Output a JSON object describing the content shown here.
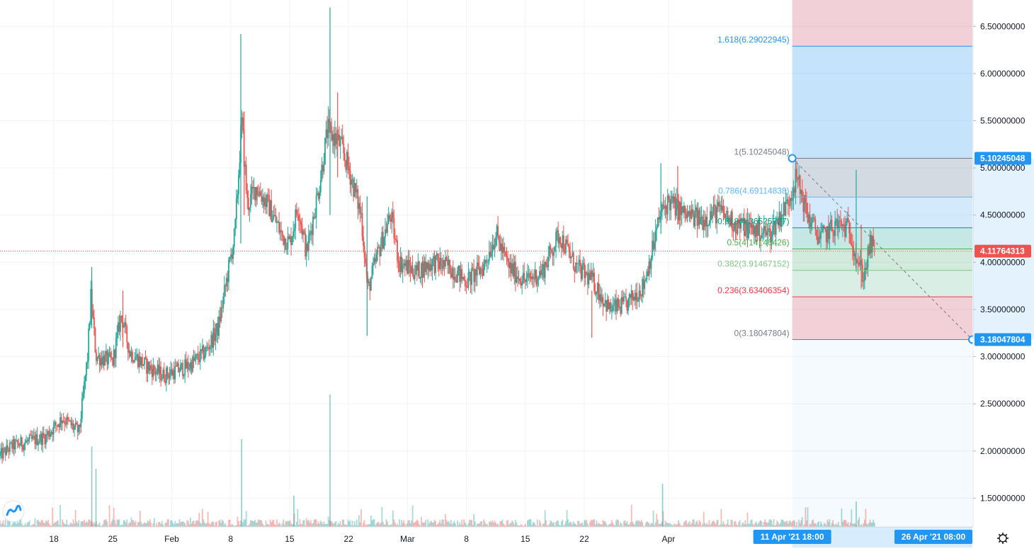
{
  "chart_data": {
    "type": "candlestick",
    "y_axis": {
      "position": "right",
      "range": [
        1.18,
        6.75
      ],
      "ticks": [
        1.5,
        2.0,
        2.5,
        3.0,
        3.5,
        4.0,
        4.5,
        5.0,
        5.5,
        6.0,
        6.5
      ],
      "tick_labels": [
        "1.50000000",
        "2.00000000",
        "2.50000000",
        "3.00000000",
        "3.50000000",
        "4.00000000",
        "4.50000000",
        "5.00000000",
        "5.50000000",
        "6.00000000",
        "6.50000000"
      ]
    },
    "x_axis": {
      "tick_labels": [
        "18",
        "25",
        "Feb",
        "8",
        "15",
        "22",
        "Mar",
        "8",
        "15",
        "22",
        "Apr"
      ],
      "tick_days": [
        18,
        25,
        32,
        39,
        46,
        53,
        60,
        67,
        74,
        81,
        91
      ],
      "range_days": [
        11.6,
        127.1
      ],
      "range_labels": [
        "11 Apr '21  18:00",
        "26 Apr '21  08:00"
      ]
    },
    "current_price": {
      "value": 4.11764313,
      "label": "4.11764313",
      "color": "#ef5350"
    },
    "price_series": [
      {
        "day": 11.6,
        "value": 1.95
      },
      {
        "day": 13,
        "value": 2.05
      },
      {
        "day": 15,
        "value": 2.1
      },
      {
        "day": 17,
        "value": 2.15
      },
      {
        "day": 19,
        "value": 2.35
      },
      {
        "day": 21,
        "value": 2.2
      },
      {
        "day": 22,
        "value": 3.0
      },
      {
        "day": 22.4,
        "value": 3.65
      },
      {
        "day": 23,
        "value": 3.0
      },
      {
        "day": 25,
        "value": 2.95
      },
      {
        "day": 26,
        "value": 3.45
      },
      {
        "day": 27,
        "value": 3.05
      },
      {
        "day": 29,
        "value": 2.9
      },
      {
        "day": 31,
        "value": 2.8
      },
      {
        "day": 34,
        "value": 2.9
      },
      {
        "day": 36,
        "value": 3.05
      },
      {
        "day": 37.5,
        "value": 3.3
      },
      {
        "day": 38.5,
        "value": 3.8
      },
      {
        "day": 39.5,
        "value": 4.3
      },
      {
        "day": 40.3,
        "value": 5.5
      },
      {
        "day": 41,
        "value": 4.6
      },
      {
        "day": 42,
        "value": 4.8
      },
      {
        "day": 43.5,
        "value": 4.6
      },
      {
        "day": 45,
        "value": 4.3
      },
      {
        "day": 46,
        "value": 4.2
      },
      {
        "day": 47,
        "value": 4.6
      },
      {
        "day": 48,
        "value": 4.1
      },
      {
        "day": 49.5,
        "value": 4.8
      },
      {
        "day": 50.5,
        "value": 5.4
      },
      {
        "day": 52,
        "value": 5.25
      },
      {
        "day": 53,
        "value": 5.0
      },
      {
        "day": 54.5,
        "value": 4.5
      },
      {
        "day": 55.3,
        "value": 3.7
      },
      {
        "day": 56.5,
        "value": 4.1
      },
      {
        "day": 58,
        "value": 4.5
      },
      {
        "day": 59,
        "value": 4.0
      },
      {
        "day": 61,
        "value": 3.9
      },
      {
        "day": 63,
        "value": 4.0
      },
      {
        "day": 65,
        "value": 3.95
      },
      {
        "day": 67,
        "value": 3.8
      },
      {
        "day": 69,
        "value": 3.95
      },
      {
        "day": 70.5,
        "value": 4.3
      },
      {
        "day": 72,
        "value": 3.95
      },
      {
        "day": 74,
        "value": 3.8
      },
      {
        "day": 76,
        "value": 3.9
      },
      {
        "day": 78,
        "value": 4.3
      },
      {
        "day": 80,
        "value": 3.95
      },
      {
        "day": 82,
        "value": 3.8
      },
      {
        "day": 84,
        "value": 3.5
      },
      {
        "day": 86,
        "value": 3.55
      },
      {
        "day": 88,
        "value": 3.75
      },
      {
        "day": 89,
        "value": 4.1
      },
      {
        "day": 90,
        "value": 4.5
      },
      {
        "day": 91,
        "value": 4.65
      },
      {
        "day": 93,
        "value": 4.5
      },
      {
        "day": 95,
        "value": 4.45
      },
      {
        "day": 97,
        "value": 4.55
      },
      {
        "day": 99,
        "value": 4.4
      },
      {
        "day": 101,
        "value": 4.35
      },
      {
        "day": 103,
        "value": 4.3
      },
      {
        "day": 105,
        "value": 4.6
      },
      {
        "day": 106.2,
        "value": 4.9
      },
      {
        "day": 107.5,
        "value": 4.5
      },
      {
        "day": 109,
        "value": 4.25
      },
      {
        "day": 111,
        "value": 4.4
      },
      {
        "day": 112.5,
        "value": 4.35
      },
      {
        "day": 113.5,
        "value": 4.0
      },
      {
        "day": 114.2,
        "value": 3.85
      },
      {
        "day": 115,
        "value": 4.2
      },
      {
        "day": 115.5,
        "value": 4.12
      }
    ],
    "spikes": [
      {
        "day": 22.5,
        "high": 3.95,
        "low": 3.3
      },
      {
        "day": 26.2,
        "high": 3.7,
        "low": 3.1
      },
      {
        "day": 40.2,
        "high": 6.42,
        "low": 4.2
      },
      {
        "day": 40.6,
        "high": 5.6,
        "low": 4.5
      },
      {
        "day": 50.8,
        "high": 6.7,
        "low": 4.5
      },
      {
        "day": 51.7,
        "high": 5.8,
        "low": 4.9
      },
      {
        "day": 55.2,
        "high": 4.7,
        "low": 3.22
      },
      {
        "day": 81.9,
        "high": 3.7,
        "low": 3.2
      },
      {
        "day": 90.1,
        "high": 5.05,
        "low": 4.3
      },
      {
        "day": 92.1,
        "high": 5.02,
        "low": 4.4
      },
      {
        "day": 113.3,
        "high": 4.98,
        "low": 3.9
      },
      {
        "day": 113.9,
        "high": 4.4,
        "low": 3.72
      }
    ],
    "volume_spikes": [
      {
        "day": 22.5,
        "value": 0.55
      },
      {
        "day": 23,
        "value": 0.4
      },
      {
        "day": 40.3,
        "value": 0.6
      },
      {
        "day": 46.5,
        "value": 0.22
      },
      {
        "day": 50.8,
        "value": 0.9
      },
      {
        "day": 90.3,
        "value": 0.3
      },
      {
        "day": 113.3,
        "value": 0.18
      }
    ],
    "fib_levels": [
      {
        "ratio": 1.618,
        "value": 6.29022945,
        "label": "1.618(6.29022945)",
        "color": "#2196f3"
      },
      {
        "ratio": 1,
        "value": 5.10245048,
        "label": "1(5.10245048)",
        "color": "#787b86"
      },
      {
        "ratio": 0.786,
        "value": 4.69114838,
        "label": "0.786(4.69114838)",
        "color": "#64b5f6"
      },
      {
        "ratio": 0.618,
        "value": 4.36525727,
        "label": "0.618(4.36525727)",
        "color": "#089981"
      },
      {
        "ratio": 0.5,
        "value": 4.14146426,
        "label": "0.5(4.14146426)",
        "color": "#4caf50"
      },
      {
        "ratio": 0.382,
        "value": 3.91467152,
        "label": "0.382(3.91467152)",
        "color": "#81c784"
      },
      {
        "ratio": 0.236,
        "value": 3.63406354,
        "label": "0.236(3.63406354)",
        "color": "#f23645"
      },
      {
        "ratio": 0,
        "value": 3.18047804,
        "label": "0(3.18047804)",
        "color": "#787b86"
      }
    ],
    "fib_anchor_labels": [
      "5.10245048",
      "3.18047804"
    ],
    "fib_range_days": [
      105.7,
      127.1
    ],
    "colors": {
      "up": "#26a69a",
      "down": "#ef5350",
      "grid": "#f0f3fa",
      "axis_text": "#131722",
      "fib_anchor": "#2196f3"
    }
  },
  "icons": {
    "logo": "tradingview-logo-icon",
    "settings": "gear-icon"
  }
}
